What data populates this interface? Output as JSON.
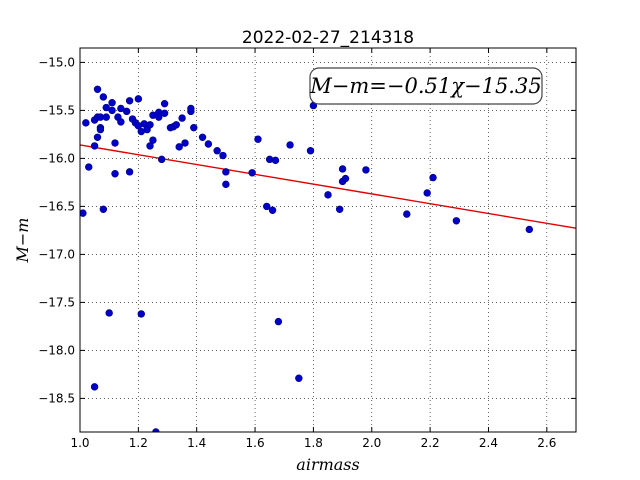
{
  "chart_data": {
    "type": "scatter",
    "title": "2022-02-27_214318",
    "xlabel": "airmass",
    "ylabel": "M−m",
    "xlim": [
      1.0,
      2.7
    ],
    "ylim": [
      -18.85,
      -14.85
    ],
    "y_inverted": true,
    "grid": true,
    "x_ticks": [
      1.0,
      1.2,
      1.4,
      1.6,
      1.8,
      2.0,
      2.2,
      2.4,
      2.6
    ],
    "x_tick_labels": [
      "1.0",
      "1.2",
      "1.4",
      "1.6",
      "1.8",
      "2.0",
      "2.2",
      "2.4",
      "2.6"
    ],
    "y_ticks": [
      -15.0,
      -15.5,
      -16.0,
      -16.5,
      -17.0,
      -17.5,
      -18.0,
      -18.5
    ],
    "y_tick_labels": [
      "−15.0",
      "−15.5",
      "−16.0",
      "−16.5",
      "−17.0",
      "−17.5",
      "−18.0",
      "−18.5"
    ],
    "annotation": "M−m=−0.51χ−15.35",
    "fit": {
      "slope": -0.51,
      "intercept": -15.35,
      "x_range": [
        1.0,
        2.7
      ],
      "color": "#e00000"
    },
    "points_color": "#0000c8",
    "points": [
      [
        1.01,
        -16.57
      ],
      [
        1.02,
        -15.63
      ],
      [
        1.03,
        -16.09
      ],
      [
        1.05,
        -15.6
      ],
      [
        1.05,
        -15.87
      ],
      [
        1.05,
        -18.38
      ],
      [
        1.06,
        -15.28
      ],
      [
        1.06,
        -15.57
      ],
      [
        1.06,
        -15.78
      ],
      [
        1.07,
        -15.68
      ],
      [
        1.07,
        -15.7
      ],
      [
        1.07,
        -15.57
      ],
      [
        1.08,
        -15.36
      ],
      [
        1.08,
        -16.53
      ],
      [
        1.09,
        -15.57
      ],
      [
        1.09,
        -15.47
      ],
      [
        1.1,
        -17.61
      ],
      [
        1.11,
        -15.5
      ],
      [
        1.11,
        -15.42
      ],
      [
        1.12,
        -16.16
      ],
      [
        1.12,
        -15.84
      ],
      [
        1.13,
        -15.57
      ],
      [
        1.14,
        -15.48
      ],
      [
        1.14,
        -15.62
      ],
      [
        1.16,
        -15.51
      ],
      [
        1.17,
        -15.4
      ],
      [
        1.17,
        -16.14
      ],
      [
        1.18,
        -15.59
      ],
      [
        1.19,
        -15.63
      ],
      [
        1.2,
        -15.38
      ],
      [
        1.2,
        -15.66
      ],
      [
        1.21,
        -15.72
      ],
      [
        1.21,
        -17.62
      ],
      [
        1.22,
        -15.64
      ],
      [
        1.23,
        -15.7
      ],
      [
        1.24,
        -15.65
      ],
      [
        1.24,
        -15.87
      ],
      [
        1.25,
        -15.81
      ],
      [
        1.25,
        -15.55
      ],
      [
        1.26,
        -18.85
      ],
      [
        1.27,
        -15.52
      ],
      [
        1.27,
        -15.57
      ],
      [
        1.28,
        -16.01
      ],
      [
        1.29,
        -15.43
      ],
      [
        1.29,
        -15.53
      ],
      [
        1.31,
        -15.68
      ],
      [
        1.32,
        -15.67
      ],
      [
        1.33,
        -15.65
      ],
      [
        1.34,
        -15.88
      ],
      [
        1.35,
        -15.58
      ],
      [
        1.36,
        -15.84
      ],
      [
        1.38,
        -15.51
      ],
      [
        1.38,
        -15.48
      ],
      [
        1.39,
        -15.68
      ],
      [
        1.42,
        -15.78
      ],
      [
        1.44,
        -15.85
      ],
      [
        1.47,
        -15.92
      ],
      [
        1.49,
        -15.97
      ],
      [
        1.5,
        -16.14
      ],
      [
        1.5,
        -16.27
      ],
      [
        1.59,
        -16.15
      ],
      [
        1.61,
        -15.8
      ],
      [
        1.64,
        -16.5
      ],
      [
        1.65,
        -16.01
      ],
      [
        1.66,
        -16.54
      ],
      [
        1.67,
        -16.02
      ],
      [
        1.68,
        -17.7
      ],
      [
        1.72,
        -15.86
      ],
      [
        1.75,
        -18.29
      ],
      [
        1.79,
        -15.92
      ],
      [
        1.8,
        -15.45
      ],
      [
        1.85,
        -16.38
      ],
      [
        1.89,
        -16.53
      ],
      [
        1.9,
        -16.24
      ],
      [
        1.9,
        -16.11
      ],
      [
        1.91,
        -16.21
      ],
      [
        1.98,
        -16.12
      ],
      [
        2.12,
        -16.58
      ],
      [
        2.19,
        -16.36
      ],
      [
        2.21,
        -16.2
      ],
      [
        2.29,
        -16.65
      ],
      [
        2.54,
        -16.74
      ]
    ]
  }
}
